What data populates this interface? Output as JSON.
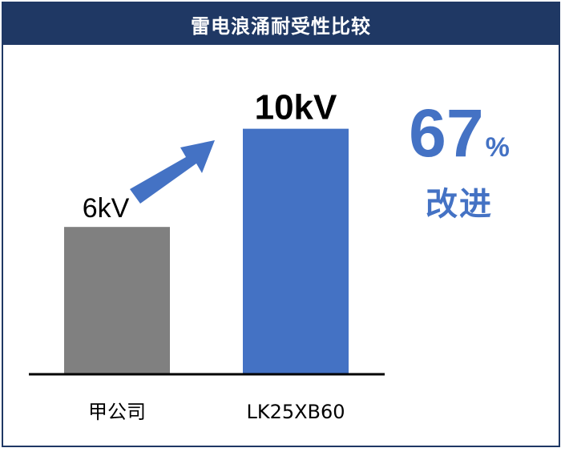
{
  "title": "雷电浪涌耐受性比较",
  "chart_data": {
    "type": "bar",
    "categories": [
      "甲公司",
      "LK25XB60"
    ],
    "values": [
      6,
      10
    ],
    "value_labels": [
      "6kV",
      "10kV"
    ],
    "unit": "kV",
    "ylim": [
      0,
      11
    ],
    "colors": [
      "#808080",
      "#4472c4"
    ],
    "grid": false
  },
  "callout": {
    "percent_value": "67",
    "percent_sign": "%",
    "label": "改进",
    "color": "#4472c4"
  },
  "colors": {
    "title_bar": "#1f3864",
    "arrow": "#4472c4",
    "baseline": "#000000"
  }
}
